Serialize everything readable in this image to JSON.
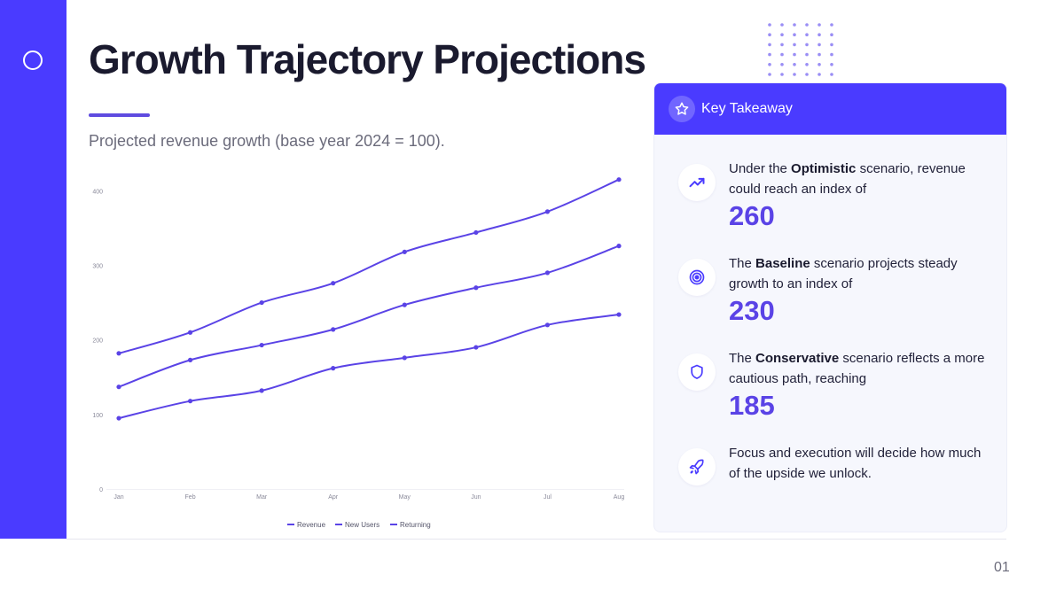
{
  "slide": {
    "title": "Growth Trajectory Projections",
    "subtitle": "Projected revenue growth (base year 2024 = 100).",
    "page_number": "01"
  },
  "colors": {
    "accent": "#4a3bff",
    "line": "#5a43e6",
    "value": "#5a43e6",
    "card_bg": "#f6f7fd"
  },
  "takeaway": {
    "header": "Key Takeaway",
    "header_icon": "star-icon",
    "items": [
      {
        "icon": "trending-up-icon",
        "text_pre": "Under the ",
        "text_bold": "Optimistic",
        "text_post": " scenario, revenue could reach an index of",
        "value": "260"
      },
      {
        "icon": "target-icon",
        "text_pre": "The ",
        "text_bold": "Baseline",
        "text_post": " scenario projects steady growth to an index of",
        "value": "230"
      },
      {
        "icon": "shield-icon",
        "text_pre": "The ",
        "text_bold": "Conservative",
        "text_post": " scenario reflects a more cautious path, reaching",
        "value": "185"
      },
      {
        "icon": "rocket-icon",
        "text_pre": "Focus and execution will decide how much of the upside we unlock.",
        "text_bold": "",
        "text_post": "",
        "value": ""
      }
    ]
  },
  "chart_data": {
    "type": "line",
    "categories": [
      "Jan",
      "Feb",
      "Mar",
      "Apr",
      "May",
      "Jun",
      "Jul",
      "Aug"
    ],
    "series": [
      {
        "name": "Revenue",
        "values": [
          95,
          118,
          132,
          162,
          176,
          190,
          220,
          234
        ]
      },
      {
        "name": "New Users",
        "values": [
          137,
          173,
          193,
          214,
          247,
          270,
          290,
          326
        ]
      },
      {
        "name": "Returning",
        "values": [
          182,
          210,
          250,
          276,
          318,
          344,
          372,
          415
        ]
      }
    ],
    "y_ticks": [
      0,
      100,
      200,
      300,
      400
    ],
    "ylim": [
      0,
      460
    ],
    "grid": false,
    "legend_position": "bottom-center"
  }
}
